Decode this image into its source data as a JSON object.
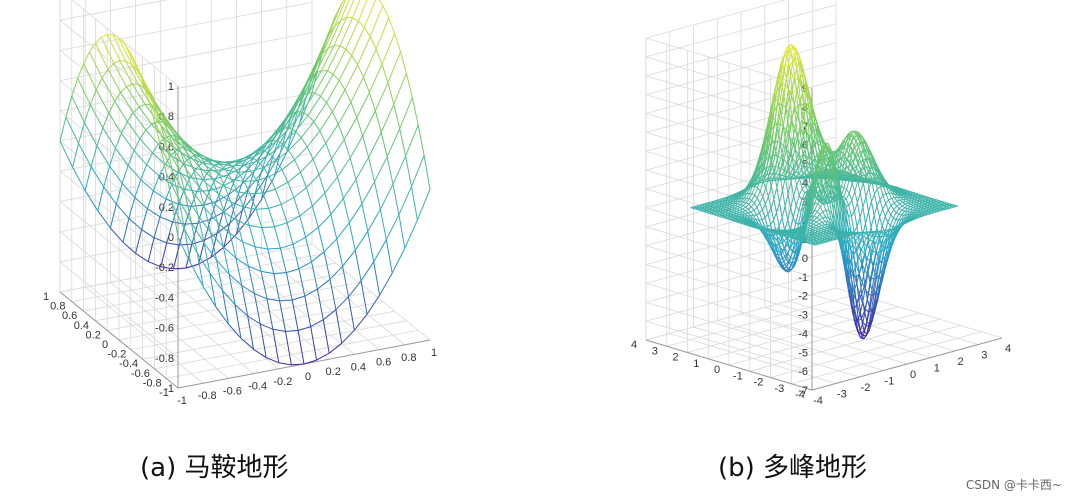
{
  "chart_data": [
    {
      "type": "surface",
      "style": "wireframe mesh",
      "title": "",
      "caption": "(a) 马鞍地形",
      "function": "z = x^2 - y^2",
      "mesh_grid": 21,
      "x_range": [
        -1,
        1
      ],
      "y_range": [
        -1,
        1
      ],
      "zlim": [
        -1,
        1
      ],
      "x_ticks": [
        "-1",
        "-0.8",
        "-0.6",
        "-0.4",
        "-0.2",
        "0",
        "0.2",
        "0.4",
        "0.6",
        "0.8",
        "1"
      ],
      "y_ticks": [
        "-1",
        "-0.8",
        "-0.6",
        "-0.4",
        "-0.2",
        "0",
        "0.2",
        "0.4",
        "0.6",
        "0.8",
        "1"
      ],
      "z_ticks": [
        "-1",
        "-0.8",
        "-0.6",
        "-0.4",
        "-0.2",
        "0",
        "0.2",
        "0.4",
        "0.6",
        "0.8",
        "1"
      ],
      "grid": true,
      "colormap": [
        "#3d26a8",
        "#26a8c8",
        "#6cc96c",
        "#e8e830"
      ]
    },
    {
      "type": "surface",
      "style": "wireframe mesh",
      "title": "",
      "caption": "(b) 多峰地形",
      "function": "peaks(x, y)",
      "mesh_grid": 49,
      "x_range": [
        -3,
        3
      ],
      "y_range": [
        -3,
        3
      ],
      "x_tick_range": [
        -4,
        4
      ],
      "y_tick_range": [
        -4,
        4
      ],
      "zlim": [
        -7,
        9
      ],
      "x_ticks": [
        "-4",
        "-3",
        "-2",
        "-1",
        "0",
        "1",
        "2",
        "3",
        "4"
      ],
      "y_ticks": [
        "-4",
        "-3",
        "-2",
        "-1",
        "0",
        "1",
        "2",
        "3",
        "4"
      ],
      "z_ticks": [
        "-7",
        "-6",
        "-5",
        "-4",
        "-3",
        "-2",
        "-1",
        "0",
        "1",
        "2",
        "3",
        "4",
        "5",
        "6",
        "7",
        "8",
        "9"
      ],
      "grid": true,
      "colormap": [
        "#3d26a8",
        "#26a8c8",
        "#6cc96c",
        "#e8e830"
      ]
    }
  ],
  "watermark": "CSDN @卡卡西~"
}
